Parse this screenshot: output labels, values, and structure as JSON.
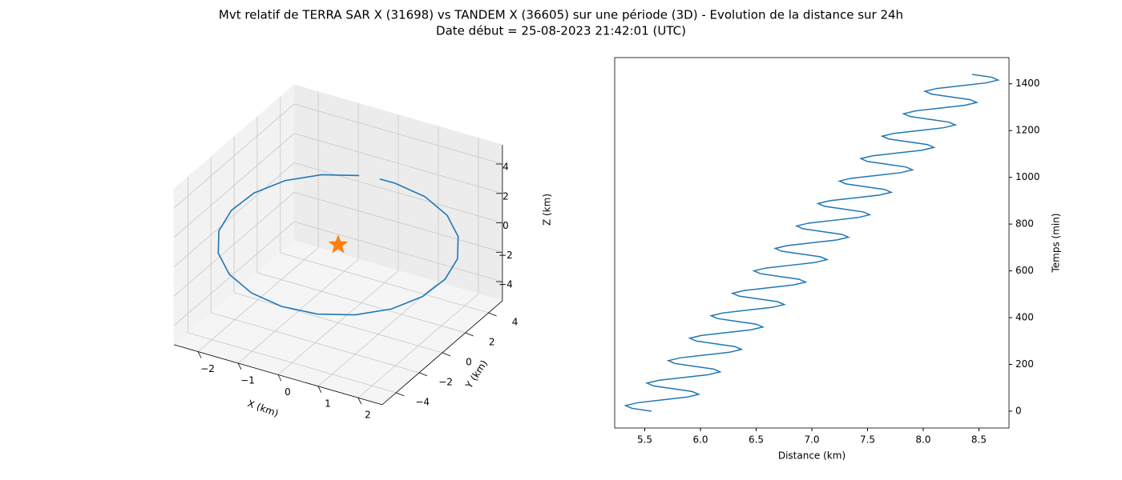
{
  "title": "Mvt relatif de TERRA SAR X (31698) vs TANDEM X (36605) sur une période (3D) - Evolution de la distance sur 24h",
  "subtitle": "Date début = 25-08-2023 21:42:01 (UTC)",
  "chart_data": [
    {
      "type": "line3d",
      "x_label": "X (km)",
      "y_label": "Y (km)",
      "z_label": "Z (km)",
      "xlim": [
        -2.6,
        2.6
      ],
      "ylim": [
        -5.2,
        5.2
      ],
      "zlim": [
        -5.3,
        5.3
      ],
      "xticks": [
        {
          "value": -2,
          "label": "−2"
        },
        {
          "value": -1,
          "label": "−1"
        },
        0,
        1,
        2
      ],
      "yticks": [
        {
          "value": -4,
          "label": "−4"
        },
        {
          "value": -2,
          "label": "−2"
        },
        0,
        2,
        4
      ],
      "zticks": [
        {
          "value": -4,
          "label": "−4"
        },
        {
          "value": -2,
          "label": "−2"
        },
        0,
        2,
        4
      ],
      "grid": true,
      "series": [
        {
          "color": "#1f77b4",
          "marker": "none",
          "x": [
            0.4,
            -0.32,
            -1.01,
            -1.6,
            -2.03,
            -2.27,
            -2.28,
            -2.07,
            -1.65,
            -1.08,
            -0.4,
            0.32,
            1.01,
            1.6,
            2.03,
            2.27,
            2.28,
            2.07,
            1.65,
            1.08,
            0.79
          ],
          "y": [
            0.43,
            -0.35,
            -1.1,
            -1.74,
            -2.21,
            -2.46,
            -2.48,
            -2.25,
            -1.8,
            -1.17,
            -0.43,
            0.35,
            1.1,
            1.74,
            2.21,
            2.46,
            2.48,
            2.25,
            1.8,
            1.17,
            0.86
          ],
          "z": [
            4.73,
            4.75,
            4.32,
            3.45,
            2.25,
            0.84,
            -0.67,
            -2.1,
            -3.34,
            -4.24,
            -4.73,
            -4.75,
            -4.32,
            -3.45,
            -2.25,
            -0.84,
            0.67,
            2.1,
            3.34,
            4.24,
            4.51
          ]
        },
        {
          "color": "#ff7f0e",
          "marker": "star",
          "x": [
            0
          ],
          "y": [
            0
          ],
          "z": [
            0
          ]
        }
      ]
    },
    {
      "type": "line",
      "x_label": "Distance (km)",
      "y_label": "Temps (min)",
      "xlim": [
        5.23,
        8.77
      ],
      "ylim": [
        -72,
        1512
      ],
      "xticks": [
        5.5,
        {
          "value": 6,
          "label": "6.0"
        },
        6.5,
        {
          "value": 7,
          "label": "7.0"
        },
        7.5,
        {
          "value": 8,
          "label": "8.0"
        },
        8.5
      ],
      "yticks": [
        0,
        200,
        400,
        600,
        800,
        1000,
        1200,
        1400
      ],
      "y_axis_side": "right",
      "grid": false,
      "series": [
        {
          "color": "#1f77b4",
          "x": [
            5.56,
            5.386,
            5.328,
            5.434,
            5.656,
            5.878,
            5.984,
            5.926,
            5.752,
            5.578,
            5.52,
            5.626,
            5.848,
            6.07,
            6.176,
            6.118,
            5.944,
            5.77,
            5.712,
            5.818,
            6.04,
            6.262,
            6.368,
            6.31,
            6.136,
            5.962,
            5.904,
            6.01,
            6.232,
            6.454,
            6.56,
            6.502,
            6.328,
            6.154,
            6.096,
            6.202,
            6.424,
            6.646,
            6.752,
            6.694,
            6.52,
            6.346,
            6.288,
            6.394,
            6.616,
            6.838,
            6.944,
            6.886,
            6.712,
            6.538,
            6.48,
            6.586,
            6.808,
            7.03,
            7.136,
            7.078,
            6.904,
            6.73,
            6.672,
            6.778,
            7.0,
            7.222,
            7.328,
            7.27,
            7.096,
            6.922,
            6.864,
            6.97,
            7.192,
            7.414,
            7.52,
            7.462,
            7.288,
            7.114,
            7.056,
            7.162,
            7.384,
            7.606,
            7.712,
            7.654,
            7.48,
            7.306,
            7.248,
            7.354,
            7.576,
            7.798,
            7.904,
            7.846,
            7.672,
            7.498,
            7.44,
            7.546,
            7.768,
            7.99,
            8.096,
            8.038,
            7.864,
            7.69,
            7.632,
            7.738,
            7.96,
            8.182,
            8.288,
            8.23,
            8.056,
            7.882,
            7.824,
            7.93,
            8.152,
            8.374,
            8.48,
            8.422,
            8.248,
            8.074,
            8.016,
            8.122,
            8.344,
            8.566,
            8.672,
            8.614,
            8.44
          ],
          "y": [
            0,
            12,
            24,
            36,
            48,
            60,
            72,
            84,
            96,
            108,
            120,
            132,
            144,
            156,
            168,
            180,
            192,
            204,
            216,
            228,
            240,
            252,
            264,
            276,
            288,
            300,
            312,
            324,
            336,
            348,
            360,
            372,
            384,
            396,
            408,
            420,
            432,
            444,
            456,
            468,
            480,
            492,
            504,
            516,
            528,
            540,
            552,
            564,
            576,
            588,
            600,
            612,
            624,
            636,
            648,
            660,
            672,
            684,
            696,
            708,
            720,
            732,
            744,
            756,
            768,
            780,
            792,
            804,
            816,
            828,
            840,
            852,
            864,
            876,
            888,
            900,
            912,
            924,
            936,
            948,
            960,
            972,
            984,
            996,
            1008,
            1020,
            1032,
            1044,
            1056,
            1068,
            1080,
            1092,
            1104,
            1116,
            1128,
            1140,
            1152,
            1164,
            1176,
            1188,
            1200,
            1212,
            1224,
            1236,
            1248,
            1260,
            1272,
            1284,
            1296,
            1308,
            1320,
            1332,
            1344,
            1356,
            1368,
            1380,
            1392,
            1404,
            1416,
            1428,
            1440
          ]
        }
      ]
    }
  ]
}
